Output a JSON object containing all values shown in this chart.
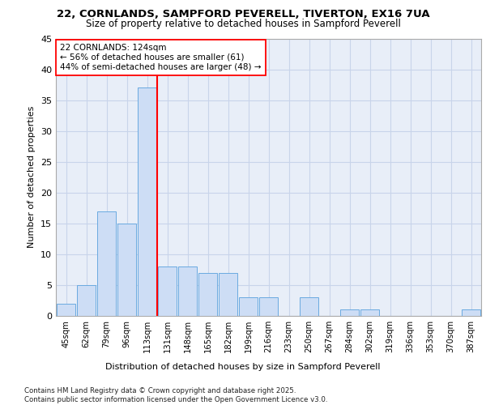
{
  "title1": "22, CORNLANDS, SAMPFORD PEVERELL, TIVERTON, EX16 7UA",
  "title2": "Size of property relative to detached houses in Sampford Peverell",
  "xlabel": "Distribution of detached houses by size in Sampford Peverell",
  "ylabel": "Number of detached properties",
  "categories": [
    "45sqm",
    "62sqm",
    "79sqm",
    "96sqm",
    "113sqm",
    "131sqm",
    "148sqm",
    "165sqm",
    "182sqm",
    "199sqm",
    "216sqm",
    "233sqm",
    "250sqm",
    "267sqm",
    "284sqm",
    "302sqm",
    "319sqm",
    "336sqm",
    "353sqm",
    "370sqm",
    "387sqm"
  ],
  "values": [
    2,
    5,
    17,
    15,
    37,
    8,
    8,
    7,
    7,
    3,
    3,
    0,
    3,
    0,
    1,
    1,
    0,
    0,
    0,
    0,
    1
  ],
  "bar_color": "#cdddf5",
  "bar_edge_color": "#6aaae0",
  "bar_edge_width": 0.7,
  "grid_color": "#c8d4ea",
  "background_color": "#e8eef8",
  "annotation_text": "22 CORNLANDS: 124sqm\n← 56% of detached houses are smaller (61)\n44% of semi-detached houses are larger (48) →",
  "footer": "Contains HM Land Registry data © Crown copyright and database right 2025.\nContains public sector information licensed under the Open Government Licence v3.0.",
  "ylim": [
    0,
    45
  ],
  "yticks": [
    0,
    5,
    10,
    15,
    20,
    25,
    30,
    35,
    40,
    45
  ]
}
